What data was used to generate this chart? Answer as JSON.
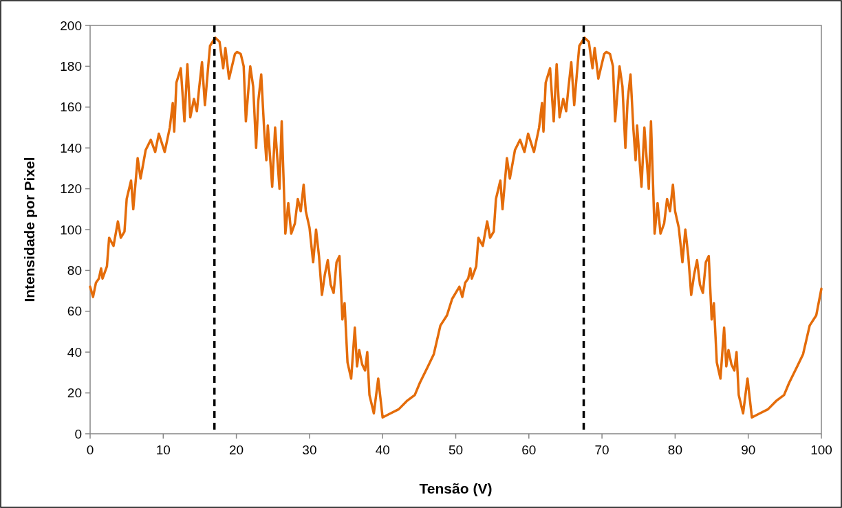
{
  "chart_data": {
    "type": "line",
    "xlabel": "Tensão (V)",
    "ylabel": "Intensidade por Pixel",
    "xlim": [
      0,
      100
    ],
    "xticks": [
      0,
      10,
      20,
      30,
      40,
      50,
      60,
      70,
      80,
      90,
      100
    ],
    "ylim": [
      0,
      200
    ],
    "yticks": [
      0,
      20,
      40,
      60,
      80,
      100,
      120,
      140,
      160,
      180,
      200
    ],
    "grid": false,
    "marker": "none",
    "line_style": "solid",
    "ref_lines": [
      {
        "axis": "x",
        "value": 17,
        "color": "#000000",
        "line_style": "dashed"
      },
      {
        "axis": "x",
        "value": 67.5,
        "color": "#000000",
        "line_style": "dashed"
      }
    ],
    "series": [
      {
        "color": "#e46c0a",
        "x": [
          0,
          0.4,
          0.8,
          1.2,
          1.5,
          1.7,
          2.3,
          2.6,
          3.2,
          3.8,
          4.2,
          4.7,
          5.0,
          5.6,
          5.9,
          6.5,
          6.9,
          7.6,
          8.3,
          8.9,
          9.4,
          10.2,
          10.9,
          11.3,
          11.5,
          11.8,
          12.4,
          12.9,
          13.3,
          13.7,
          14.2,
          14.6,
          14.9,
          15.3,
          15.7,
          16.2,
          16.4,
          17.1,
          17.7,
          18.2,
          18.5,
          19.0,
          19.8,
          20.1,
          20.6,
          21.0,
          21.3,
          21.9,
          22.3,
          22.7,
          23.0,
          23.4,
          23.8,
          24.1,
          24.3,
          24.9,
          25.3,
          25.9,
          26.2,
          26.7,
          27.1,
          27.5,
          28.0,
          28.4,
          28.8,
          29.2,
          29.5,
          30.0,
          30.5,
          30.9,
          31.3,
          31.7,
          32.1,
          32.5,
          32.9,
          33.3,
          33.7,
          34.1,
          34.5,
          34.8,
          35.2,
          35.7,
          36.2,
          36.5,
          36.8,
          37.2,
          37.6,
          37.9,
          38.2,
          38.8,
          39.4,
          40.0,
          41.1,
          42.2,
          43.3,
          44.4,
          45.1,
          46.2,
          47.0,
          47.9,
          48.8,
          49.5,
          50.5,
          50.9,
          51.3,
          51.7,
          52.0,
          52.2,
          52.8,
          53.1,
          53.7,
          54.3,
          54.7,
          55.2,
          55.5,
          56.1,
          56.4,
          57.0,
          57.4,
          58.1,
          58.8,
          59.4,
          59.9,
          60.7,
          61.4,
          61.8,
          62.0,
          62.3,
          62.9,
          63.4,
          63.8,
          64.2,
          64.7,
          65.1,
          65.4,
          65.8,
          66.2,
          66.7,
          66.9,
          67.6,
          68.2,
          68.7,
          69.0,
          69.5,
          70.3,
          70.6,
          71.1,
          71.5,
          71.8,
          72.4,
          72.8,
          73.2,
          73.5,
          73.9,
          74.3,
          74.6,
          74.8,
          75.4,
          75.8,
          76.4,
          76.7,
          77.2,
          77.6,
          78.0,
          78.5,
          78.9,
          79.3,
          79.7,
          80.0,
          80.5,
          81.0,
          81.4,
          81.8,
          82.2,
          82.6,
          83.0,
          83.4,
          83.8,
          84.2,
          84.6,
          85.0,
          85.3,
          85.7,
          86.2,
          86.7,
          87.0,
          87.3,
          87.7,
          88.1,
          88.4,
          88.7,
          89.3,
          89.9,
          90.5,
          91.6,
          92.7,
          93.8,
          94.9,
          95.6,
          96.7,
          97.5,
          98.4,
          99.3,
          100
        ],
        "values": [
          72,
          67,
          74,
          76,
          81,
          76,
          82,
          96,
          92,
          104,
          96,
          99,
          115,
          124,
          110,
          135,
          125,
          139,
          144,
          138,
          147,
          138,
          150,
          162,
          148,
          172,
          179,
          153,
          181,
          155,
          164,
          158,
          169,
          182,
          161,
          182,
          190,
          194,
          192,
          179,
          189,
          174,
          186,
          187,
          186,
          180,
          153,
          180,
          170,
          140,
          163,
          176,
          149,
          134,
          151,
          121,
          150,
          120,
          153,
          98,
          113,
          98,
          103,
          115,
          109,
          122,
          109,
          101,
          84,
          100,
          87,
          68,
          78,
          85,
          73,
          69,
          84,
          87,
          56,
          64,
          35,
          27,
          52,
          33,
          41,
          34,
          31,
          40,
          19,
          10,
          27,
          8,
          10,
          12,
          16,
          19,
          25,
          33,
          39,
          53,
          58,
          66,
          72,
          67,
          74,
          76,
          81,
          76,
          82,
          96,
          92,
          104,
          96,
          99,
          115,
          124,
          110,
          135,
          125,
          139,
          144,
          138,
          147,
          138,
          150,
          162,
          148,
          172,
          179,
          153,
          181,
          155,
          164,
          158,
          169,
          182,
          161,
          182,
          190,
          194,
          192,
          179,
          189,
          174,
          186,
          187,
          186,
          180,
          153,
          180,
          170,
          140,
          163,
          176,
          149,
          134,
          151,
          121,
          150,
          120,
          153,
          98,
          113,
          98,
          103,
          115,
          109,
          122,
          109,
          101,
          84,
          100,
          87,
          68,
          78,
          85,
          73,
          69,
          84,
          87,
          56,
          64,
          35,
          27,
          52,
          33,
          41,
          34,
          31,
          40,
          19,
          10,
          27,
          8,
          10,
          12,
          16,
          19,
          25,
          33,
          39,
          53,
          58,
          71
        ]
      }
    ]
  }
}
